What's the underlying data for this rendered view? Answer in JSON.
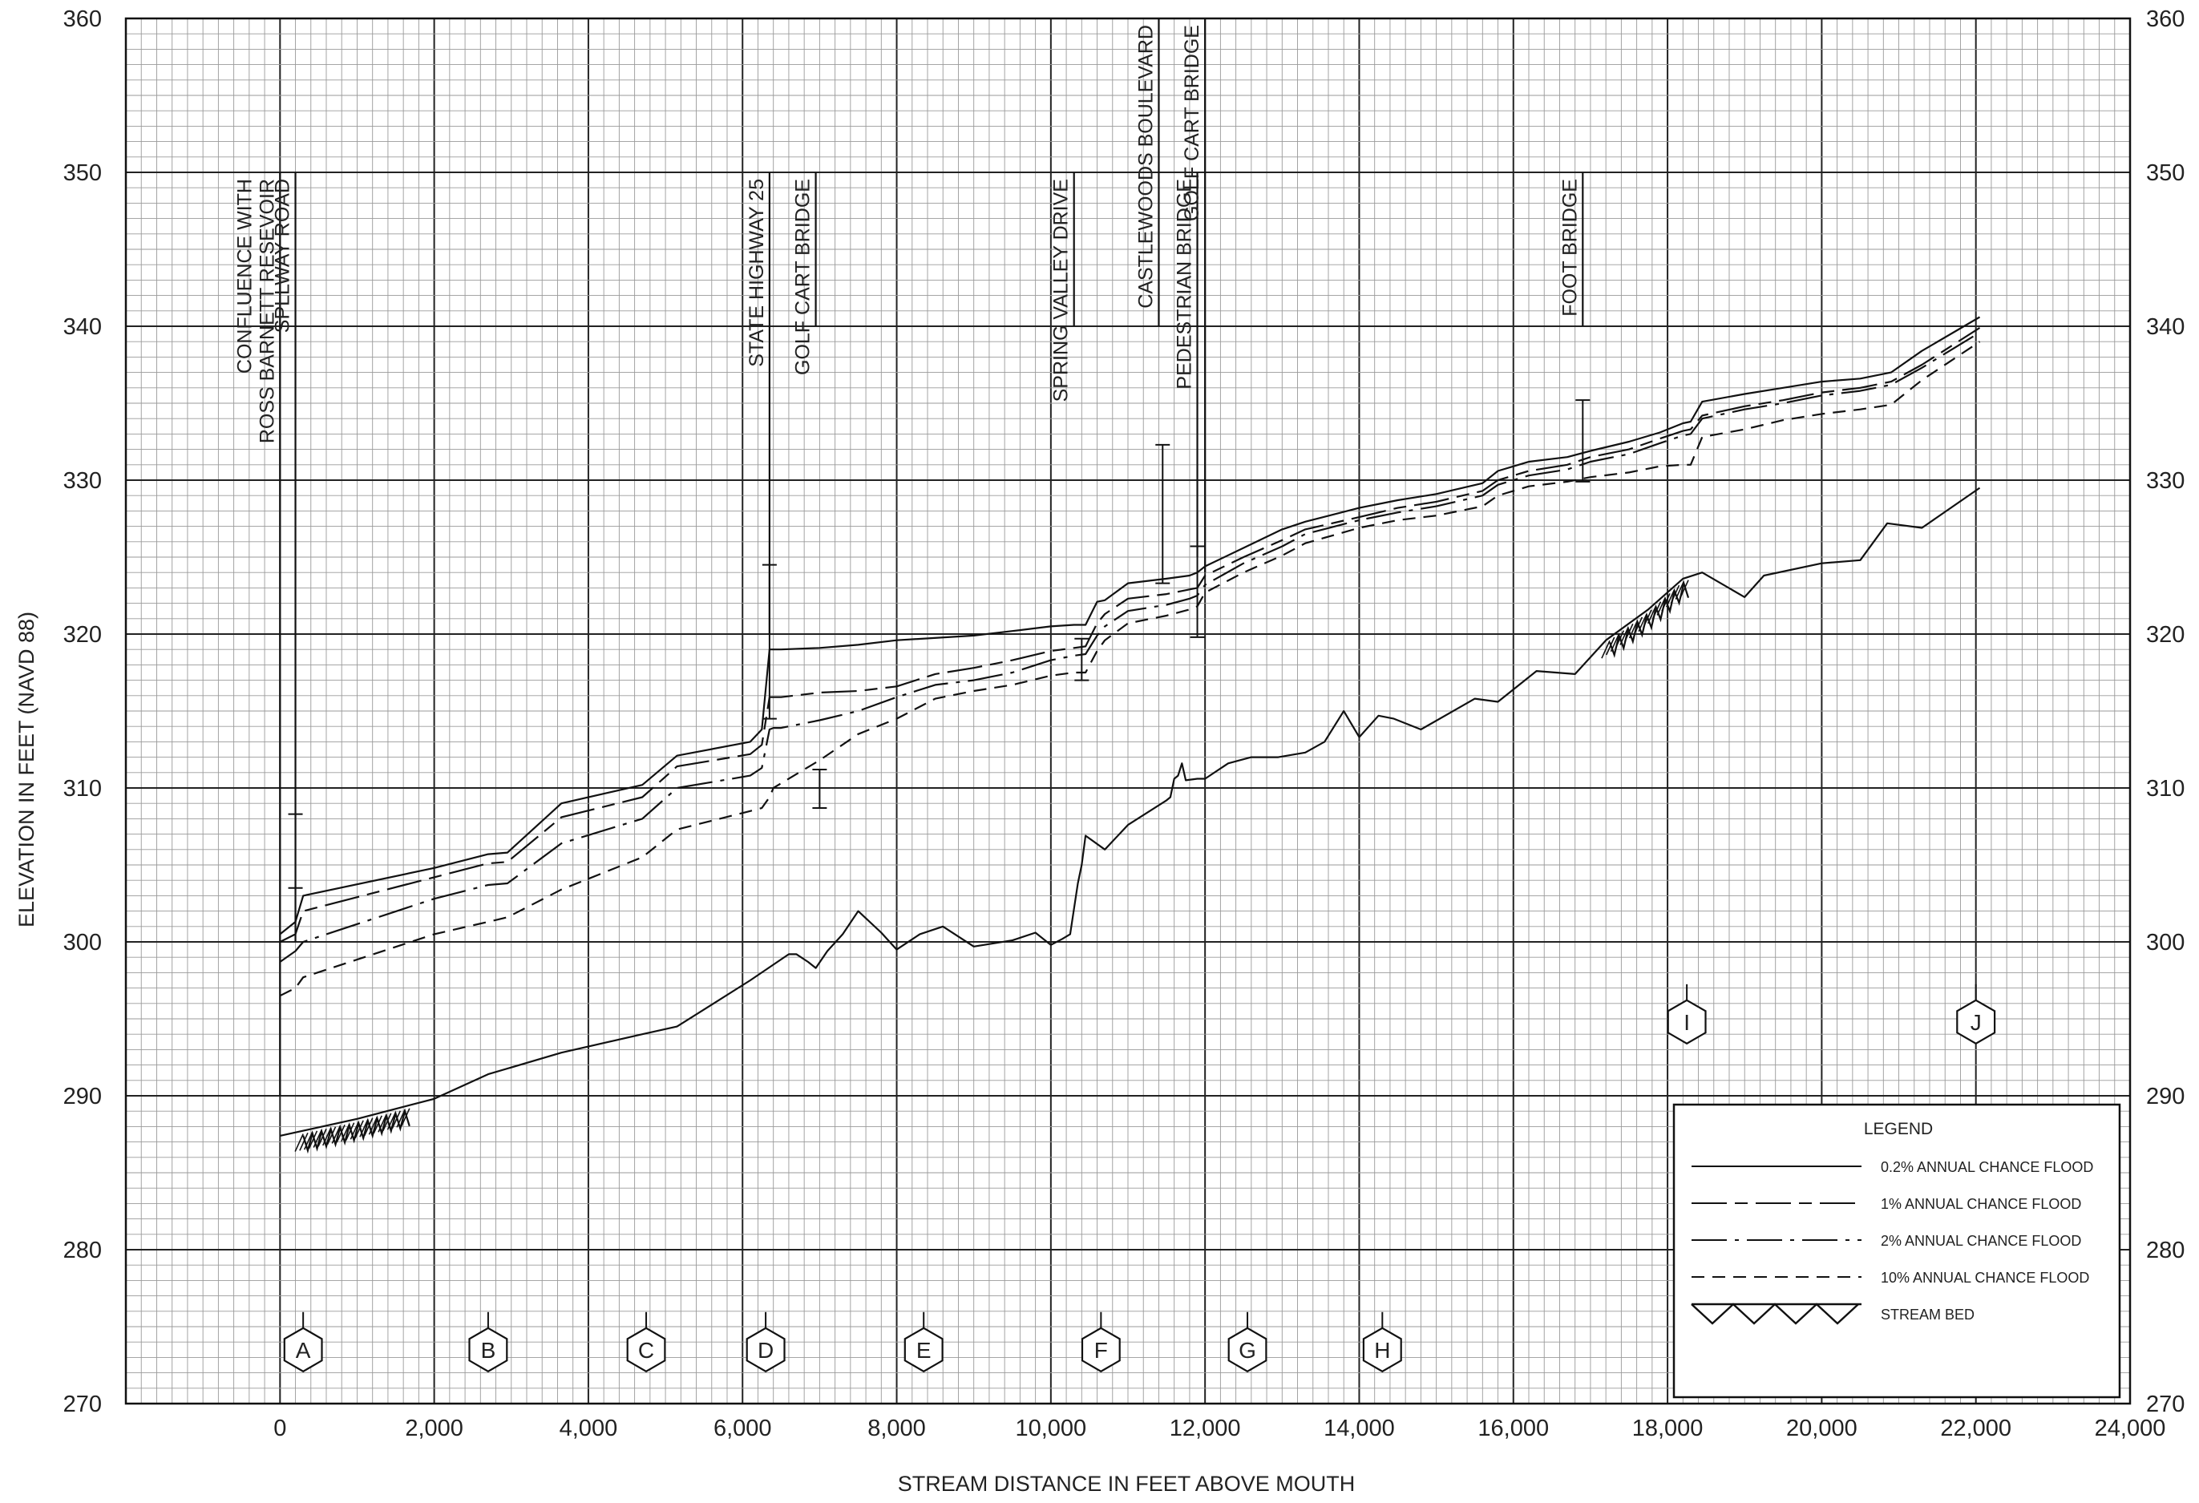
{
  "chart_data": {
    "type": "line",
    "title": "",
    "xlabel": "STREAM DISTANCE IN FEET ABOVE MOUTH",
    "ylabel": "ELEVATION IN FEET (NAVD 88)",
    "xlim": [
      -2000,
      24000
    ],
    "ylim": [
      270,
      360
    ],
    "x_ticks": [
      0,
      2000,
      4000,
      6000,
      8000,
      10000,
      12000,
      14000,
      16000,
      18000,
      20000,
      22000,
      24000
    ],
    "x_tick_labels": [
      "0",
      "2,000",
      "4,000",
      "6,000",
      "8,000",
      "10,000",
      "12,000",
      "14,000",
      "16,000",
      "18,000",
      "20,000",
      "22,000",
      "24,000"
    ],
    "y_ticks": [
      270,
      280,
      290,
      300,
      310,
      320,
      330,
      340,
      350,
      360
    ],
    "y_tick_labels": [
      "270",
      "280",
      "290",
      "300",
      "310",
      "320",
      "330",
      "340",
      "350",
      "360"
    ],
    "grid": true,
    "minor_grid": {
      "x_step": 200,
      "y_step": 1
    },
    "legend": {
      "title": "LEGEND",
      "placement": "bottom-right",
      "entries": [
        {
          "label": "0.2% ANNUAL CHANCE FLOOD",
          "style": "solid"
        },
        {
          "label": "1% ANNUAL CHANCE FLOOD",
          "style": "longdash-dash"
        },
        {
          "label": "2% ANNUAL CHANCE FLOOD",
          "style": "longdash-dot"
        },
        {
          "label": "10% ANNUAL CHANCE FLOOD",
          "style": "dashed"
        },
        {
          "label": "STREAM BED",
          "style": "hatch"
        }
      ]
    },
    "series": [
      {
        "name": "0.2% ANNUAL CHANCE FLOOD",
        "style": "solid",
        "x": [
          0,
          200,
          300,
          2000,
          2700,
          2950,
          3650,
          4700,
          5150,
          6100,
          6250,
          6350,
          6400,
          6500,
          7000,
          7500,
          8000,
          9000,
          9500,
          10000,
          10300,
          10450,
          10600,
          10700,
          11000,
          11500,
          11800,
          11900,
          12000,
          12500,
          13000,
          13300,
          14000,
          14500,
          15000,
          15600,
          15800,
          16200,
          16700,
          17000,
          17500,
          17900,
          18200,
          18300,
          18450,
          19000,
          19500,
          20000,
          20500,
          20900,
          21300,
          22050
        ],
        "y": [
          300.5,
          301.3,
          303.0,
          304.8,
          305.7,
          305.8,
          309.0,
          310.2,
          312.1,
          313.0,
          313.8,
          319.0,
          319.0,
          319.0,
          319.1,
          319.3,
          319.6,
          319.9,
          320.2,
          320.5,
          320.6,
          320.6,
          322.1,
          322.2,
          323.3,
          323.6,
          323.8,
          324.0,
          324.4,
          325.6,
          326.8,
          327.3,
          328.2,
          328.7,
          329.1,
          329.8,
          330.6,
          331.2,
          331.5,
          331.9,
          332.5,
          333.1,
          333.7,
          333.8,
          335.1,
          335.6,
          336.0,
          336.4,
          336.6,
          337.0,
          338.4,
          340.6
        ]
      },
      {
        "name": "1% ANNUAL CHANCE FLOOD",
        "style": "longdash-dash",
        "x": [
          0,
          200,
          300,
          2000,
          2700,
          2950,
          3650,
          4700,
          5150,
          6100,
          6250,
          6350,
          6400,
          6500,
          7000,
          7500,
          8000,
          8500,
          9000,
          9500,
          10000,
          10300,
          10450,
          10600,
          10700,
          11000,
          11500,
          11800,
          11900,
          12000,
          12500,
          13000,
          13300,
          14000,
          14500,
          15000,
          15600,
          15800,
          16200,
          16700,
          17000,
          17500,
          17900,
          18200,
          18300,
          18450,
          19000,
          19500,
          20000,
          20500,
          20900,
          21300,
          22050
        ],
        "y": [
          300.0,
          300.5,
          302.0,
          304.2,
          305.1,
          305.2,
          308.1,
          309.4,
          311.4,
          312.2,
          312.8,
          315.9,
          315.9,
          315.9,
          316.2,
          316.3,
          316.6,
          317.4,
          317.8,
          318.3,
          318.9,
          319.1,
          319.2,
          320.7,
          321.3,
          322.3,
          322.6,
          322.9,
          323.0,
          323.8,
          325.0,
          326.1,
          326.8,
          327.6,
          328.2,
          328.6,
          329.3,
          330.0,
          330.6,
          331.0,
          331.5,
          332.0,
          332.7,
          333.2,
          333.3,
          334.2,
          334.8,
          335.2,
          335.7,
          336.0,
          336.4,
          337.5,
          339.9
        ]
      },
      {
        "name": "2% ANNUAL CHANCE FLOOD",
        "style": "longdash-dot",
        "x": [
          0,
          200,
          300,
          2000,
          2700,
          2950,
          3650,
          4700,
          5150,
          6100,
          6250,
          6350,
          6400,
          6500,
          7000,
          7500,
          8000,
          8500,
          9000,
          9500,
          10000,
          10300,
          10450,
          10600,
          10700,
          11000,
          11500,
          11800,
          11900,
          12000,
          12500,
          13000,
          13300,
          14000,
          14500,
          15000,
          15600,
          15800,
          16200,
          16700,
          17000,
          17500,
          17900,
          18200,
          18300,
          18450,
          19000,
          19500,
          20000,
          20500,
          20900,
          21300,
          22050
        ],
        "y": [
          298.7,
          299.4,
          300.0,
          302.8,
          303.7,
          303.8,
          306.4,
          308.0,
          310.0,
          310.8,
          311.3,
          313.8,
          313.9,
          313.9,
          314.4,
          315.0,
          315.9,
          316.7,
          317.0,
          317.5,
          318.3,
          318.6,
          318.7,
          319.9,
          320.5,
          321.5,
          321.9,
          322.3,
          322.5,
          323.2,
          324.6,
          325.7,
          326.5,
          327.4,
          327.9,
          328.3,
          329.0,
          329.7,
          330.3,
          330.7,
          331.2,
          331.7,
          332.4,
          332.9,
          333.0,
          334.0,
          334.6,
          335.0,
          335.5,
          335.8,
          336.2,
          337.3,
          339.6
        ]
      },
      {
        "name": "10% ANNUAL CHANCE FLOOD",
        "style": "dashed",
        "x": [
          0,
          200,
          300,
          2000,
          2700,
          2950,
          3650,
          4700,
          5150,
          6100,
          6250,
          6350,
          6400,
          6500,
          7000,
          7500,
          8000,
          8500,
          9000,
          9500,
          10000,
          10300,
          10450,
          10600,
          10700,
          11000,
          11500,
          11800,
          11900,
          12000,
          12500,
          13000,
          13300,
          14000,
          14500,
          15000,
          15600,
          15800,
          16200,
          16700,
          17000,
          17500,
          17900,
          18200,
          18300,
          18450,
          19000,
          19500,
          20000,
          20500,
          20900,
          21300,
          22050
        ],
        "y": [
          296.5,
          297.0,
          297.7,
          300.5,
          301.3,
          301.6,
          303.4,
          305.5,
          307.3,
          308.5,
          308.7,
          309.4,
          310.0,
          310.3,
          311.8,
          313.5,
          314.5,
          315.8,
          316.3,
          316.7,
          317.3,
          317.5,
          317.5,
          318.9,
          319.6,
          320.7,
          321.2,
          321.6,
          321.8,
          322.7,
          324.0,
          325.1,
          325.9,
          326.9,
          327.4,
          327.7,
          328.3,
          329.0,
          329.6,
          329.9,
          330.2,
          330.5,
          330.9,
          331.0,
          331.0,
          332.8,
          333.3,
          333.9,
          334.3,
          334.6,
          334.9,
          336.5,
          339.0
        ]
      },
      {
        "name": "STREAM BED",
        "style": "solid",
        "x": [
          0,
          1000,
          2000,
          2700,
          3650,
          4700,
          5150,
          6100,
          6600,
          6700,
          6850,
          6950,
          7100,
          7300,
          7500,
          7800,
          8000,
          8300,
          8600,
          9000,
          9500,
          9800,
          10000,
          10150,
          10250,
          10350,
          10400,
          10450,
          10700,
          11000,
          11500,
          11550,
          11600,
          11650,
          11700,
          11750,
          11900,
          12000,
          12300,
          12600,
          12950,
          13300,
          13550,
          13800,
          14000,
          14250,
          14450,
          14800,
          15500,
          15800,
          16300,
          16800,
          17200,
          17750,
          18200,
          18450,
          19000,
          19250,
          20000,
          20500,
          20850,
          21300,
          22050
        ],
        "y": [
          287.4,
          288.5,
          289.8,
          291.4,
          292.8,
          294.0,
          294.5,
          297.5,
          299.2,
          299.2,
          298.7,
          298.3,
          299.4,
          300.5,
          302.0,
          300.6,
          299.5,
          300.5,
          301.0,
          299.7,
          300.1,
          300.6,
          299.8,
          300.2,
          300.5,
          303.8,
          305.0,
          306.9,
          306.0,
          307.6,
          309.2,
          309.4,
          310.6,
          310.8,
          311.6,
          310.5,
          310.6,
          310.6,
          311.6,
          312.0,
          312.0,
          312.3,
          313.0,
          315.0,
          313.3,
          314.7,
          314.5,
          313.8,
          315.8,
          315.6,
          317.6,
          317.4,
          319.6,
          321.6,
          323.6,
          324.0,
          322.4,
          323.8,
          324.6,
          324.8,
          327.2,
          326.9,
          329.5
        ]
      }
    ],
    "stream_bed_hatch_segments": [
      {
        "x_start": 300,
        "x_end": 1700
      },
      {
        "x_start": 17250,
        "x_end": 18300
      }
    ],
    "error_bars": [
      {
        "x": 200,
        "y_low": 303.5,
        "y_high": 308.3
      },
      {
        "x": 6350,
        "y_low": 314.5,
        "y_high": 324.5
      },
      {
        "x": 7000,
        "y_low": 308.7,
        "y_high": 311.2
      },
      {
        "x": 10400,
        "y_low": 317.0,
        "y_high": 319.7
      },
      {
        "x": 11450,
        "y_low": 323.3,
        "y_high": 332.3
      },
      {
        "x": 11900,
        "y_low": 319.8,
        "y_high": 325.7
      },
      {
        "x": 16900,
        "y_low": 329.9,
        "y_high": 335.2
      }
    ],
    "structures": [
      {
        "x": 0,
        "label": "CONFLUENCE WITH",
        "label2": "ROSS BARNETT RESEVOIR",
        "y_top": 350,
        "y_bottom": 290
      },
      {
        "x": 200,
        "label": "SPLLWAY ROAD",
        "y_top": 350,
        "y_bottom": 300
      },
      {
        "x": 6350,
        "label": "STATE HIGHWAY 25",
        "y_top": 350,
        "y_bottom": 320
      },
      {
        "x": 6950,
        "label": "GOLF CART BRIDGE",
        "y_top": 350,
        "y_bottom": 340
      },
      {
        "x": 10300,
        "label": "SPRING VALLEY DRIVE",
        "y_top": 350,
        "y_bottom": 340
      },
      {
        "x": 11400,
        "label": "CASTLEWOODS BOULEVARD",
        "y_top": 360,
        "y_bottom": 340
      },
      {
        "x": 11900,
        "label": "PEDESTRIAN BRIDGE",
        "y_top": 350,
        "y_bottom": 325
      },
      {
        "x": 12000,
        "label": "GOLF CART BRIDGE",
        "y_top": 360,
        "y_bottom": 324
      },
      {
        "x": 16900,
        "label": "FOOT BRIDGE",
        "y_top": 350,
        "y_bottom": 340
      }
    ],
    "cross_sections": [
      {
        "label": "A",
        "x": 300,
        "y": 273.5
      },
      {
        "label": "B",
        "x": 2700,
        "y": 273.5
      },
      {
        "label": "C",
        "x": 4750,
        "y": 273.5
      },
      {
        "label": "D",
        "x": 6300,
        "y": 273.5
      },
      {
        "label": "E",
        "x": 8350,
        "y": 273.5
      },
      {
        "label": "F",
        "x": 10650,
        "y": 273.5
      },
      {
        "label": "G",
        "x": 12550,
        "y": 273.5
      },
      {
        "label": "H",
        "x": 14300,
        "y": 273.5
      },
      {
        "label": "I",
        "x": 18250,
        "y": 294.8
      },
      {
        "label": "J",
        "x": 22000,
        "y": 294.8
      }
    ]
  }
}
